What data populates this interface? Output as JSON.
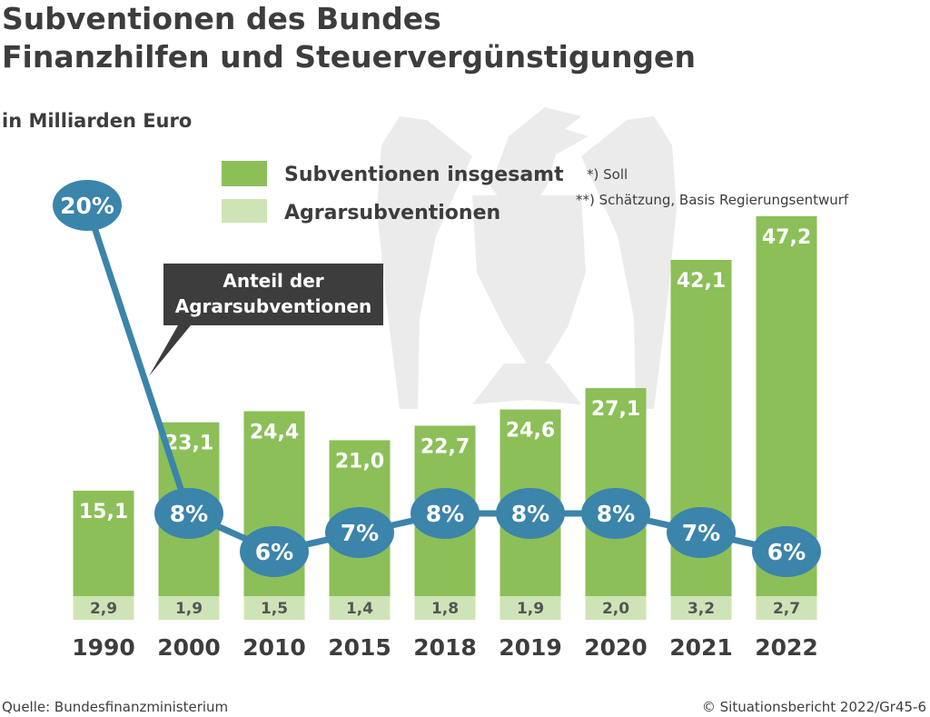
{
  "header": {
    "title_line1": "Subventionen des Bundes",
    "title_line2": "Finanzhilfen und Steuervergünstigungen",
    "subtitle": "in Milliarden Euro"
  },
  "legend": {
    "total_label": "Subventionen insgesamt",
    "agrar_label": "Agrarsubventionen"
  },
  "notes": {
    "soll": "*) Soll",
    "schaetzung": "**) Schätzung, Basis Regierungsentwurf"
  },
  "callout": {
    "line1": "Anteil der",
    "line2": "Agrarsubventionen"
  },
  "footer": {
    "source": "Quelle: Bundesfinanzministerium",
    "copyright": "© Situationsbericht 2022/Gr45-6"
  },
  "colors": {
    "total": "#8cbf58",
    "agrar": "#cfe4b6",
    "line": "#3b84aa",
    "callout": "#3d3d3d"
  },
  "chart_data": {
    "type": "bar",
    "title": "Subventionen des Bundes",
    "ylabel": "in Milliarden Euro",
    "categories": [
      "1990",
      "2000",
      "2010",
      "2015",
      "2018",
      "2019",
      "2020",
      "2021",
      "2022"
    ],
    "series": [
      {
        "name": "Subventionen insgesamt",
        "values": [
          15.1,
          23.1,
          24.4,
          21.0,
          22.7,
          24.6,
          27.1,
          42.1,
          47.2
        ],
        "labels": [
          "15,1",
          "23,1",
          "24,4",
          "21,0",
          "22,7",
          "24,6",
          "27,1",
          "42,1",
          "47,2"
        ]
      },
      {
        "name": "Agrarsubventionen",
        "values": [
          2.9,
          1.9,
          1.5,
          1.4,
          1.8,
          1.9,
          2.0,
          3.2,
          2.7
        ],
        "labels": [
          "2,9",
          "1,9",
          "1,5",
          "1,4",
          "1,8",
          "1,9",
          "2,0",
          "3,2",
          "2,7"
        ]
      },
      {
        "name": "Anteil der Agrarsubventionen",
        "type": "line",
        "values": [
          20,
          8,
          6,
          7,
          8,
          8,
          8,
          7,
          6
        ],
        "labels": [
          "20%",
          "8%",
          "6%",
          "7%",
          "8%",
          "8%",
          "8%",
          "7%",
          "6%"
        ]
      }
    ],
    "ylim": [
      0,
      50
    ]
  }
}
